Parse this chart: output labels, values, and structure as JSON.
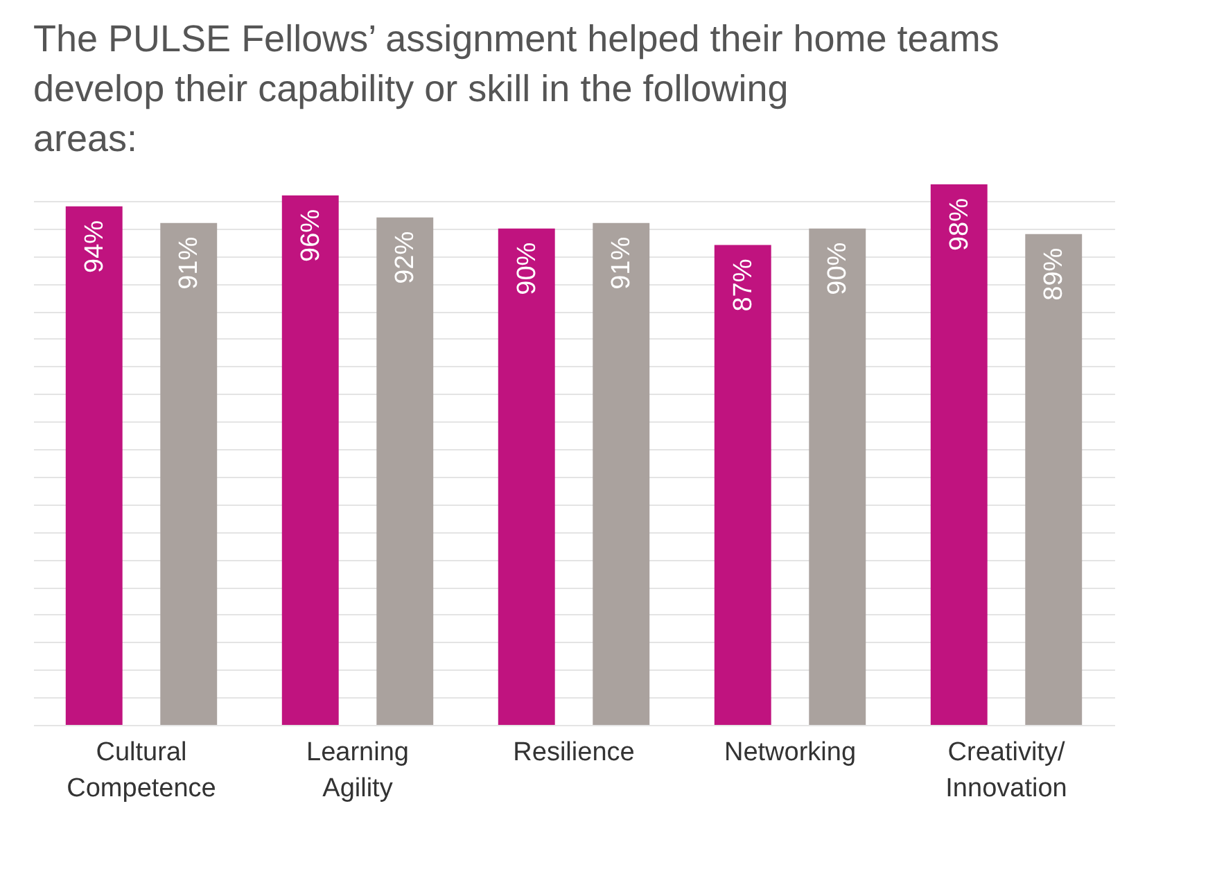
{
  "chart_data": {
    "type": "bar",
    "title": "The PULSE Fellows’ assignment helped their home teams develop their capability or skill in the following areas:",
    "categories": [
      "Cultural Competence",
      "Learning Agility",
      "Resilience",
      "Networking",
      "Creativity/ Innovation"
    ],
    "series": [
      {
        "color": "#c0137f",
        "values": [
          94,
          96,
          90,
          87,
          98
        ],
        "value_labels": [
          "94%",
          "96%",
          "90%",
          "87%",
          "98%"
        ]
      },
      {
        "color": "#aaa29e",
        "values": [
          91,
          92,
          91,
          90,
          89
        ],
        "value_labels": [
          "91%",
          "92%",
          "91%",
          "90%",
          "89%"
        ]
      }
    ],
    "tick_labels": "x",
    "grid": "y"
  }
}
